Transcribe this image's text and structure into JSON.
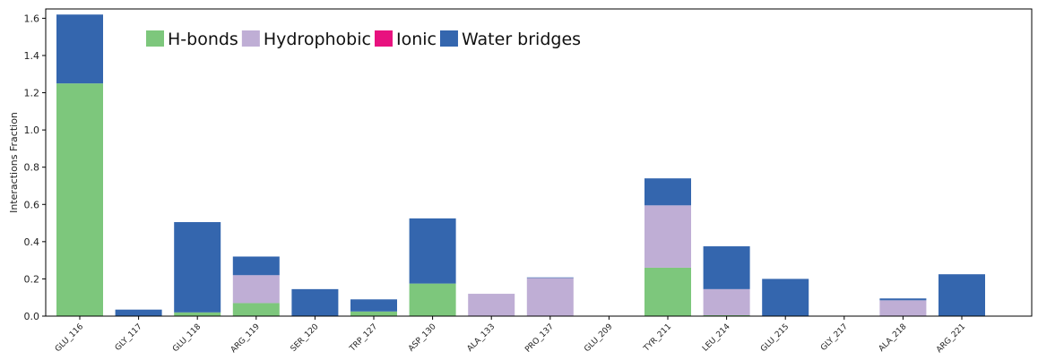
{
  "chart_data": {
    "type": "bar",
    "stacked": true,
    "ylabel": "Interactions Fraction",
    "xlabel": "",
    "ylim": [
      0,
      1.65
    ],
    "yticks": [
      0.0,
      0.2,
      0.4,
      0.6,
      0.8,
      1.0,
      1.2,
      1.4,
      1.6
    ],
    "yticklabels": [
      "0.0",
      "0.2",
      "0.4",
      "0.6",
      "0.8",
      "1.0",
      "1.2",
      "1.4",
      "1.6"
    ],
    "grid": false,
    "legend_position": "top-left",
    "categories": [
      "GLU_116",
      "GLY_117",
      "GLU_118",
      "ARG_119",
      "SER_120",
      "TRP_127",
      "ASP_130",
      "ALA_133",
      "PRO_137",
      "GLU_209",
      "TYR_211",
      "LEU_214",
      "GLU_215",
      "GLY_217",
      "ALA_218",
      "ARG_221"
    ],
    "series": [
      {
        "name": "H-bonds",
        "color": "#7dc77c",
        "values": [
          1.25,
          0.0,
          0.02,
          0.07,
          0.0,
          0.025,
          0.175,
          0.0,
          0.0,
          0.0,
          0.26,
          0.005,
          0.0,
          0.0,
          0.0,
          0.0
        ]
      },
      {
        "name": "Hydrophobic",
        "color": "#bfaed5",
        "values": [
          0.0,
          0.0,
          0.0,
          0.15,
          0.0,
          0.0,
          0.0,
          0.12,
          0.205,
          0.0,
          0.335,
          0.14,
          0.0,
          0.0,
          0.085,
          0.0
        ]
      },
      {
        "name": "Ionic",
        "color": "#e8117f",
        "values": [
          0.0,
          0.0,
          0.0,
          0.0,
          0.0,
          0.0,
          0.0,
          0.0,
          0.0,
          0.0,
          0.0,
          0.0,
          0.0,
          0.0,
          0.0,
          0.0
        ]
      },
      {
        "name": "Water bridges",
        "color": "#3466ae",
        "values": [
          0.37,
          0.035,
          0.485,
          0.1,
          0.145,
          0.065,
          0.35,
          0.0,
          0.003,
          0.0,
          0.145,
          0.23,
          0.2,
          0.0,
          0.01,
          0.225
        ]
      }
    ]
  }
}
